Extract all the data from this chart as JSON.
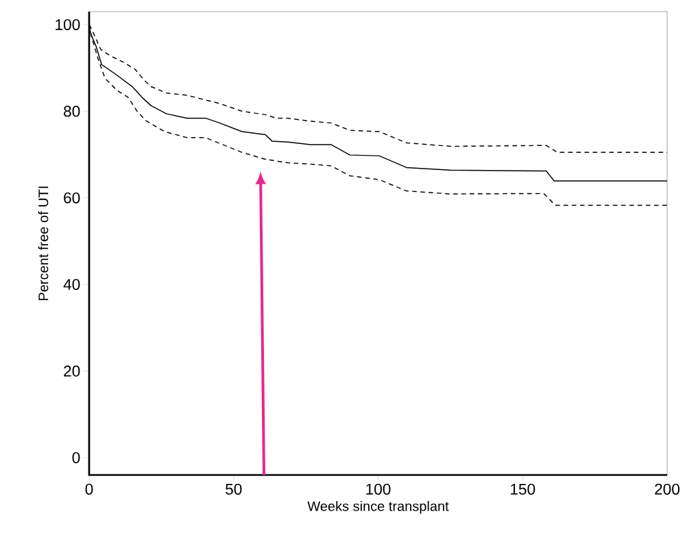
{
  "chart_data": {
    "type": "line",
    "xlabel": "Weeks since transplant",
    "ylabel": "Percent free of UTI",
    "xlim": [
      0,
      200
    ],
    "ylim": [
      -4,
      103
    ],
    "xticks": [
      0,
      50,
      100,
      150,
      200
    ],
    "yticks": [
      0,
      20,
      40,
      60,
      80,
      100
    ],
    "grid": false,
    "series": [
      {
        "color": "#000000",
        "line_style": "solid",
        "x": [
          0,
          0.5,
          2.4,
          4.3,
          9.5,
          14.9,
          18.3,
          21.4,
          26.8,
          33.9,
          40.3,
          45.1,
          52.9,
          61,
          63.3,
          68.8,
          76.6,
          83.7,
          90.2,
          100.4,
          109.8,
          125,
          158.2,
          160.9,
          200
        ],
        "values": [
          100,
          98,
          95,
          90.8,
          88.4,
          85.7,
          83.2,
          81.3,
          79.4,
          78.4,
          78.4,
          77.3,
          75.3,
          74.6,
          73.1,
          72.9,
          72.3,
          72.3,
          69.9,
          69.7,
          67,
          66.4,
          66.2,
          63.9,
          63.9
        ]
      },
      {
        "color": "#000000",
        "line_style": "dashed",
        "x": [
          0,
          0.7,
          4,
          7.1,
          11.9,
          15.9,
          19,
          21.4,
          26.8,
          33.9,
          40.3,
          45.1,
          52.9,
          61,
          64.8,
          68.8,
          71.9,
          76.6,
          83.7,
          90.2,
          100.4,
          109.8,
          125,
          158.2,
          162,
          200
        ],
        "values": [
          100,
          99.2,
          94.3,
          92.9,
          91.3,
          89.7,
          87.2,
          85.7,
          84.2,
          83.7,
          82.6,
          81.8,
          80,
          79.2,
          78.4,
          78.4,
          78.1,
          77.7,
          77.3,
          75.6,
          75.3,
          72.7,
          71.9,
          72.1,
          70.5,
          70.5
        ]
      },
      {
        "color": "#000000",
        "line_style": "dashed",
        "x": [
          0,
          0.7,
          3.1,
          5.5,
          9.5,
          13.5,
          16.6,
          19.7,
          26.1,
          33.9,
          40.3,
          45.1,
          52.9,
          61,
          68.8,
          76.6,
          83.7,
          90.2,
          100.4,
          109.8,
          125,
          157.3,
          161.3,
          200
        ],
        "values": [
          100,
          97.5,
          92.1,
          87.6,
          84.9,
          83.2,
          80,
          77.8,
          75.3,
          73.9,
          73.9,
          72.6,
          70.5,
          68.9,
          68.1,
          67.8,
          67.4,
          65.1,
          64.2,
          61.6,
          60.9,
          61,
          58.3,
          58.3
        ]
      }
    ]
  }
}
